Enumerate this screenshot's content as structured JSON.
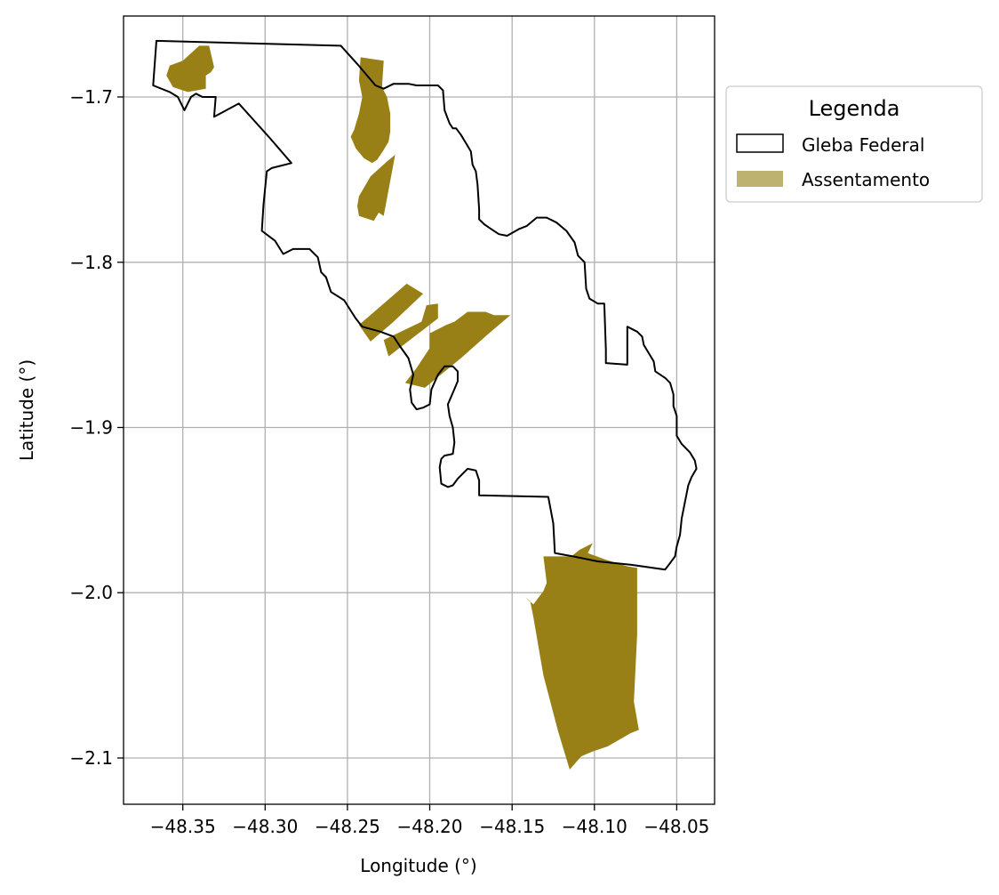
{
  "chart_data": {
    "type": "map",
    "xlabel": "Longitude (°)",
    "ylabel": "Latitude (°)",
    "xlim": [
      -48.386,
      -48.027
    ],
    "ylim": [
      -2.128,
      -1.651
    ],
    "x_ticks": [
      -48.35,
      -48.3,
      -48.25,
      -48.2,
      -48.15,
      -48.1,
      -48.05
    ],
    "x_tick_labels": [
      "−48.35",
      "−48.30",
      "−48.25",
      "−48.20",
      "−48.15",
      "−48.10",
      "−48.05"
    ],
    "y_ticks": [
      -1.7,
      -1.8,
      -1.9,
      -2.0,
      -2.1
    ],
    "y_tick_labels": [
      "−1.7",
      "−1.8",
      "−1.9",
      "−2.0",
      "−2.1"
    ],
    "grid": true,
    "legend": {
      "title": "Legenda",
      "placement": "outside-right-top",
      "entries": [
        {
          "label": "Gleba Federal",
          "type": "outline",
          "edge_color": "#000000",
          "fill_color": "#ffffff"
        },
        {
          "label": "Assentamento",
          "type": "fill",
          "fill_color": "#bdb26f"
        }
      ]
    },
    "colors": {
      "gleba_edge": "#000000",
      "assentamento_fill": "#988016",
      "grid": "#b0b0b0"
    },
    "gleba_federal": [
      [
        -48.366,
        -1.666
      ],
      [
        -48.254,
        -1.669
      ],
      [
        -48.244,
        -1.68
      ],
      [
        -48.233,
        -1.693
      ],
      [
        -48.228,
        -1.695
      ],
      [
        -48.222,
        -1.692
      ],
      [
        -48.213,
        -1.692
      ],
      [
        -48.208,
        -1.693
      ],
      [
        -48.201,
        -1.693
      ],
      [
        -48.195,
        -1.693
      ],
      [
        -48.192,
        -1.696
      ],
      [
        -48.191,
        -1.708
      ],
      [
        -48.188,
        -1.716
      ],
      [
        -48.186,
        -1.719
      ],
      [
        -48.184,
        -1.719
      ],
      [
        -48.181,
        -1.723
      ],
      [
        -48.178,
        -1.728
      ],
      [
        -48.175,
        -1.733
      ],
      [
        -48.174,
        -1.741
      ],
      [
        -48.172,
        -1.745
      ],
      [
        -48.171,
        -1.753
      ],
      [
        -48.17,
        -1.768
      ],
      [
        -48.17,
        -1.774
      ],
      [
        -48.167,
        -1.777
      ],
      [
        -48.164,
        -1.779
      ],
      [
        -48.158,
        -1.783
      ],
      [
        -48.153,
        -1.784
      ],
      [
        -48.146,
        -1.78
      ],
      [
        -48.141,
        -1.778
      ],
      [
        -48.135,
        -1.773
      ],
      [
        -48.129,
        -1.773
      ],
      [
        -48.123,
        -1.776
      ],
      [
        -48.117,
        -1.781
      ],
      [
        -48.112,
        -1.788
      ],
      [
        -48.11,
        -1.796
      ],
      [
        -48.106,
        -1.8
      ],
      [
        -48.105,
        -1.816
      ],
      [
        -48.103,
        -1.822
      ],
      [
        -48.098,
        -1.825
      ],
      [
        -48.094,
        -1.825
      ],
      [
        -48.093,
        -1.853
      ],
      [
        -48.093,
        -1.861
      ],
      [
        -48.08,
        -1.862
      ],
      [
        -48.08,
        -1.839
      ],
      [
        -48.074,
        -1.842
      ],
      [
        -48.071,
        -1.845
      ],
      [
        -48.07,
        -1.85
      ],
      [
        -48.067,
        -1.855
      ],
      [
        -48.064,
        -1.86
      ],
      [
        -48.063,
        -1.866
      ],
      [
        -48.057,
        -1.87
      ],
      [
        -48.054,
        -1.873
      ],
      [
        -48.052,
        -1.88
      ],
      [
        -48.052,
        -1.887
      ],
      [
        -48.05,
        -1.893
      ],
      [
        -48.05,
        -1.9
      ],
      [
        -48.05,
        -1.905
      ],
      [
        -48.047,
        -1.91
      ],
      [
        -48.042,
        -1.915
      ],
      [
        -48.039,
        -1.92
      ],
      [
        -48.038,
        -1.925
      ],
      [
        -48.041,
        -1.93
      ],
      [
        -48.043,
        -1.935
      ],
      [
        -48.045,
        -1.945
      ],
      [
        -48.047,
        -1.955
      ],
      [
        -48.048,
        -1.965
      ],
      [
        -48.05,
        -1.972
      ],
      [
        -48.051,
        -1.978
      ],
      [
        -48.054,
        -1.982
      ],
      [
        -48.057,
        -1.986
      ],
      [
        -48.078,
        -1.983
      ],
      [
        -48.098,
        -1.981
      ],
      [
        -48.113,
        -1.978
      ],
      [
        -48.124,
        -1.976
      ],
      [
        -48.125,
        -1.958
      ],
      [
        -48.128,
        -1.942
      ],
      [
        -48.17,
        -1.941
      ],
      [
        -48.17,
        -1.932
      ],
      [
        -48.172,
        -1.926
      ],
      [
        -48.177,
        -1.925
      ],
      [
        -48.183,
        -1.931
      ],
      [
        -48.186,
        -1.935
      ],
      [
        -48.189,
        -1.936
      ],
      [
        -48.193,
        -1.934
      ],
      [
        -48.194,
        -1.924
      ],
      [
        -48.193,
        -1.919
      ],
      [
        -48.191,
        -1.917
      ],
      [
        -48.186,
        -1.916
      ],
      [
        -48.185,
        -1.909
      ],
      [
        -48.186,
        -1.9
      ],
      [
        -48.188,
        -1.893
      ],
      [
        -48.189,
        -1.886
      ],
      [
        -48.186,
        -1.879
      ],
      [
        -48.183,
        -1.872
      ],
      [
        -48.183,
        -1.866
      ],
      [
        -48.186,
        -1.863
      ],
      [
        -48.191,
        -1.863
      ],
      [
        -48.195,
        -1.868
      ],
      [
        -48.199,
        -1.877
      ],
      [
        -48.2,
        -1.886
      ],
      [
        -48.204,
        -1.888
      ],
      [
        -48.208,
        -1.889
      ],
      [
        -48.211,
        -1.885
      ],
      [
        -48.212,
        -1.877
      ],
      [
        -48.21,
        -1.868
      ],
      [
        -48.213,
        -1.858
      ],
      [
        -48.218,
        -1.851
      ],
      [
        -48.222,
        -1.845
      ],
      [
        -48.23,
        -1.842
      ],
      [
        -48.241,
        -1.839
      ],
      [
        -48.245,
        -1.834
      ],
      [
        -48.252,
        -1.823
      ],
      [
        -48.26,
        -1.818
      ],
      [
        -48.263,
        -1.809
      ],
      [
        -48.266,
        -1.806
      ],
      [
        -48.268,
        -1.797
      ],
      [
        -48.273,
        -1.792
      ],
      [
        -48.283,
        -1.792
      ],
      [
        -48.289,
        -1.795
      ],
      [
        -48.294,
        -1.787
      ],
      [
        -48.302,
        -1.781
      ],
      [
        -48.301,
        -1.765
      ],
      [
        -48.299,
        -1.745
      ],
      [
        -48.296,
        -1.743
      ],
      [
        -48.284,
        -1.74
      ],
      [
        -48.297,
        -1.725
      ],
      [
        -48.316,
        -1.704
      ],
      [
        -48.331,
        -1.712
      ],
      [
        -48.33,
        -1.7
      ],
      [
        -48.338,
        -1.7
      ],
      [
        -48.342,
        -1.698
      ],
      [
        -48.345,
        -1.7
      ],
      [
        -48.349,
        -1.708
      ],
      [
        -48.353,
        -1.7
      ],
      [
        -48.358,
        -1.697
      ],
      [
        -48.368,
        -1.693
      ],
      [
        -48.366,
        -1.666
      ]
    ],
    "assentamentos": [
      [
        [
          -48.35,
          -1.678
        ],
        [
          -48.34,
          -1.669
        ],
        [
          -48.334,
          -1.669
        ],
        [
          -48.331,
          -1.682
        ],
        [
          -48.333,
          -1.685
        ],
        [
          -48.336,
          -1.687
        ],
        [
          -48.336,
          -1.695
        ],
        [
          -48.347,
          -1.697
        ],
        [
          -48.356,
          -1.694
        ],
        [
          -48.36,
          -1.687
        ],
        [
          -48.358,
          -1.681
        ]
      ],
      [
        [
          -48.228,
          -1.678
        ],
        [
          -48.242,
          -1.676
        ],
        [
          -48.243,
          -1.69
        ],
        [
          -48.241,
          -1.7
        ],
        [
          -48.243,
          -1.71
        ],
        [
          -48.246,
          -1.72
        ],
        [
          -48.248,
          -1.724
        ],
        [
          -48.245,
          -1.731
        ],
        [
          -48.24,
          -1.737
        ],
        [
          -48.235,
          -1.74
        ],
        [
          -48.232,
          -1.738
        ],
        [
          -48.228,
          -1.732
        ],
        [
          -48.225,
          -1.727
        ],
        [
          -48.224,
          -1.721
        ],
        [
          -48.224,
          -1.71
        ],
        [
          -48.226,
          -1.7
        ],
        [
          -48.229,
          -1.694
        ]
      ],
      [
        [
          -48.24,
          -1.755
        ],
        [
          -48.236,
          -1.748
        ],
        [
          -48.226,
          -1.739
        ],
        [
          -48.221,
          -1.735
        ],
        [
          -48.228,
          -1.772
        ],
        [
          -48.231,
          -1.77
        ],
        [
          -48.234,
          -1.775
        ],
        [
          -48.243,
          -1.772
        ],
        [
          -48.244,
          -1.766
        ],
        [
          -48.243,
          -1.76
        ]
      ],
      [
        [
          -48.243,
          -1.838
        ],
        [
          -48.214,
          -1.813
        ],
        [
          -48.204,
          -1.819
        ],
        [
          -48.222,
          -1.836
        ],
        [
          -48.236,
          -1.848
        ]
      ],
      [
        [
          -48.228,
          -1.847
        ],
        [
          -48.205,
          -1.836
        ],
        [
          -48.202,
          -1.826
        ],
        [
          -48.195,
          -1.825
        ],
        [
          -48.195,
          -1.834
        ],
        [
          -48.225,
          -1.857
        ]
      ],
      [
        [
          -48.2,
          -1.843
        ],
        [
          -48.19,
          -1.838
        ],
        [
          -48.185,
          -1.836
        ],
        [
          -48.177,
          -1.83
        ],
        [
          -48.166,
          -1.83
        ],
        [
          -48.161,
          -1.832
        ],
        [
          -48.151,
          -1.832
        ],
        [
          -48.164,
          -1.843
        ],
        [
          -48.181,
          -1.858
        ],
        [
          -48.203,
          -1.876
        ],
        [
          -48.215,
          -1.873
        ],
        [
          -48.208,
          -1.864
        ],
        [
          -48.2,
          -1.852
        ]
      ],
      [
        [
          -48.114,
          -1.978
        ],
        [
          -48.109,
          -1.974
        ],
        [
          -48.101,
          -1.97
        ],
        [
          -48.104,
          -1.976
        ],
        [
          -48.093,
          -1.98
        ],
        [
          -48.08,
          -1.984
        ],
        [
          -48.074,
          -1.985
        ],
        [
          -48.074,
          -2.025
        ],
        [
          -48.076,
          -2.066
        ],
        [
          -48.073,
          -2.083
        ],
        [
          -48.078,
          -2.085
        ],
        [
          -48.092,
          -2.093
        ],
        [
          -48.101,
          -2.096
        ],
        [
          -48.108,
          -2.099
        ],
        [
          -48.115,
          -2.107
        ],
        [
          -48.122,
          -2.084
        ],
        [
          -48.131,
          -2.05
        ],
        [
          -48.137,
          -2.015
        ],
        [
          -48.139,
          -2.005
        ],
        [
          -48.142,
          -2.003
        ],
        [
          -48.137,
          -2.007
        ],
        [
          -48.131,
          -1.999
        ],
        [
          -48.129,
          -1.994
        ],
        [
          -48.131,
          -1.978
        ]
      ]
    ]
  }
}
